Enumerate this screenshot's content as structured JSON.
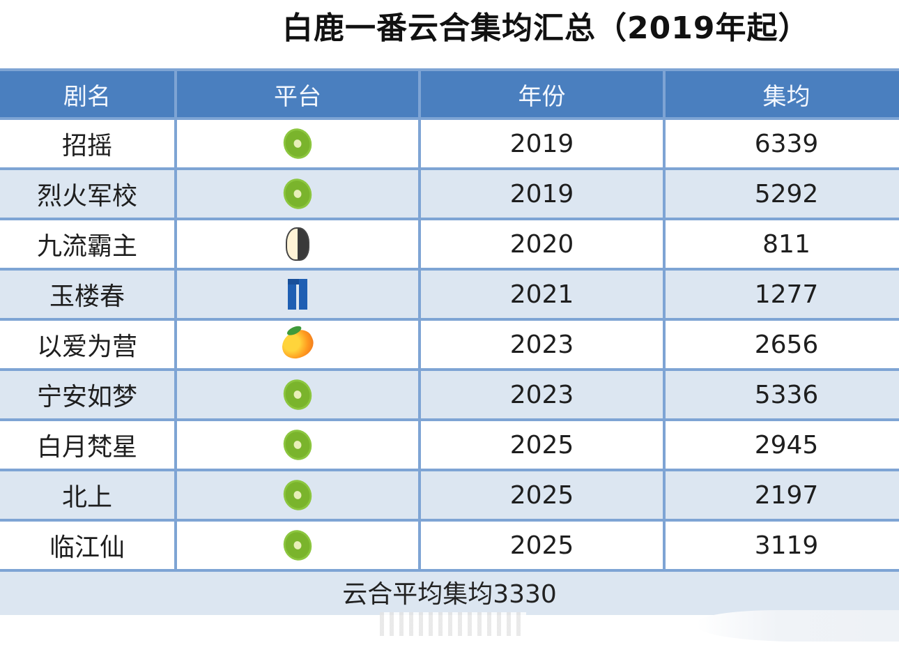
{
  "title": "白鹿一番云合集均汇总（2019年起）",
  "table": {
    "headers": [
      "剧名",
      "平台",
      "年份",
      "集均"
    ],
    "rows": [
      {
        "name": "招摇",
        "platform": "kiwi-icon",
        "platform_label": "爱奇艺(猕猴桃)",
        "year": "2019",
        "avg": "6339"
      },
      {
        "name": "烈火军校",
        "platform": "kiwi-icon",
        "platform_label": "爱奇艺(猕猴桃)",
        "year": "2019",
        "avg": "5292"
      },
      {
        "name": "九流霸主",
        "platform": "penguin-icon",
        "platform_label": "腾讯(企鹅)",
        "year": "2020",
        "avg": "811"
      },
      {
        "name": "玉楼春",
        "platform": "jeans-icon",
        "platform_label": "优酷(裤子)",
        "year": "2021",
        "avg": "1277"
      },
      {
        "name": "以爱为营",
        "platform": "mango-icon",
        "platform_label": "芒果TV(芒果)",
        "year": "2023",
        "avg": "2656"
      },
      {
        "name": "宁安如梦",
        "platform": "kiwi-icon",
        "platform_label": "爱奇艺(猕猴桃)",
        "year": "2023",
        "avg": "5336"
      },
      {
        "name": "白月梵星",
        "platform": "kiwi-icon",
        "platform_label": "爱奇艺(猕猴桃)",
        "year": "2025",
        "avg": "2945"
      },
      {
        "name": "北上",
        "platform": "kiwi-icon",
        "platform_label": "爱奇艺(猕猴桃)",
        "year": "2025",
        "avg": "2197"
      },
      {
        "name": "临江仙",
        "platform": "kiwi-icon",
        "platform_label": "爱奇艺(猕猴桃)",
        "year": "2025",
        "avg": "3119"
      }
    ],
    "footer": "云合平均集均3330"
  },
  "colors": {
    "header_bg": "#4a7fbf",
    "grid_line": "#7ea4d4",
    "row_alt_bg": "#dce6f1",
    "row_bg": "#ffffff"
  }
}
